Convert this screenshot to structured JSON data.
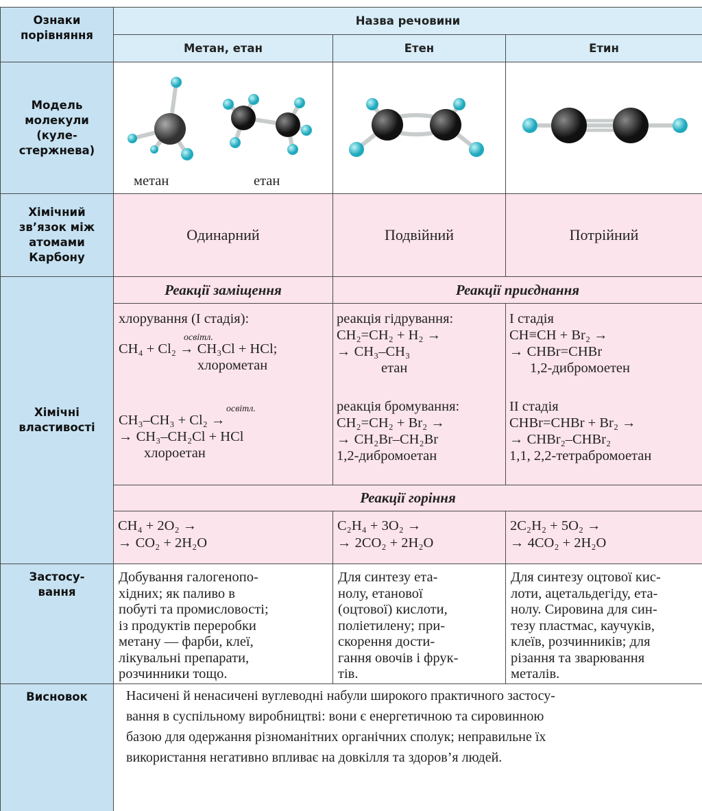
{
  "header": {
    "criteria": [
      "Ознаки",
      "порівняння"
    ],
    "title": "Назва речовини",
    "columns": [
      "Метан, етан",
      "Етен",
      "Етин"
    ]
  },
  "model": {
    "label": [
      "Модель",
      "молекули",
      "(куле-",
      "стержнева)"
    ],
    "captions": [
      "метан",
      "етан"
    ]
  },
  "bond": {
    "label": [
      "Хімічний",
      "зв’язок між",
      "атомами",
      "Карбону"
    ],
    "values": [
      "Одинарний",
      "Подвійний",
      "Потрійний"
    ]
  },
  "properties": {
    "label": [
      "Хімічні",
      "властивості"
    ],
    "substitution_title": "Реакції заміщення",
    "addition_title": "Реакції приєднання",
    "combustion_title": "Реакції горіння",
    "substitution": [
      "хлорування (I стадія):",
      "освітл.",
      "CH₄ + Cl₂ → CH₃Cl + HCl;",
      "хлорометан",
      "освітл.",
      "CH₃–CH₃ + Cl₂ →",
      "→ CH₃–CH₂Cl + HCl",
      "хлороетан"
    ],
    "ethene_addition": [
      "реакція гідрування:",
      "CH₂=CH₂ + H₂ →",
      "→ CH₃–CH₃",
      "етан",
      "реакція бромування:",
      "CH₂=CH₂ + Br₂ →",
      "→ CH₂Br–CH₂Br",
      "1,2-дибромоетан"
    ],
    "ethyne_addition": [
      "I стадія",
      "CH≡CH + Br₂ →",
      "→ CHBr=CHBr",
      "1,2-дибромоетен",
      "II стадія",
      "CHBr=CHBr + Br₂ →",
      "→ CHBr₂–CHBr₂",
      "1,1, 2,2-тетрабромоетан"
    ],
    "combustion": [
      [
        "CH₄ + 2O₂ →",
        "→ CO₂ + 2H₂O"
      ],
      [
        "C₂H₄ + 3O₂ →",
        "→ 2CO₂ + 2H₂O"
      ],
      [
        "2C₂H₂ + 5O₂ →",
        "→ 4CO₂ + 2H₂O"
      ]
    ]
  },
  "application": {
    "label": [
      "Застосу-",
      "вання"
    ],
    "cells": [
      [
        "Добування галогенопо-",
        "хідних; як паливо в",
        "побуті та промисловості;",
        "із продуктів переробки",
        "метану — фарби, клеї,",
        "лікувальні препарати,",
        "розчинники тощо."
      ],
      [
        "Для синтезу ета-",
        "нолу, етанової",
        "(оцтової) кислоти,",
        "поліетилену; при-",
        "скорення дости-",
        "гання овочів і фрук-",
        "тів."
      ],
      [
        "Для синтезу оцтової кис-",
        "лоти, ацетальдегіду, ета-",
        "нолу. Сировина для син-",
        "тезу пластмас, каучуків,",
        "клеїв, розчинників; для",
        "різання та зварювання",
        "металів."
      ]
    ]
  },
  "conclusion": {
    "label": "Висновок",
    "lines": [
      "Насичені й ненасичені вуглеводні набули широкого практичного застосу-",
      "вання в суспільному виробництві: вони є енергетичною та сировинною",
      "базою для одержання різноманітних органічних сполук; неправильне їх",
      "використання негативно впливає на довкілля та здоров’я людей."
    ]
  }
}
